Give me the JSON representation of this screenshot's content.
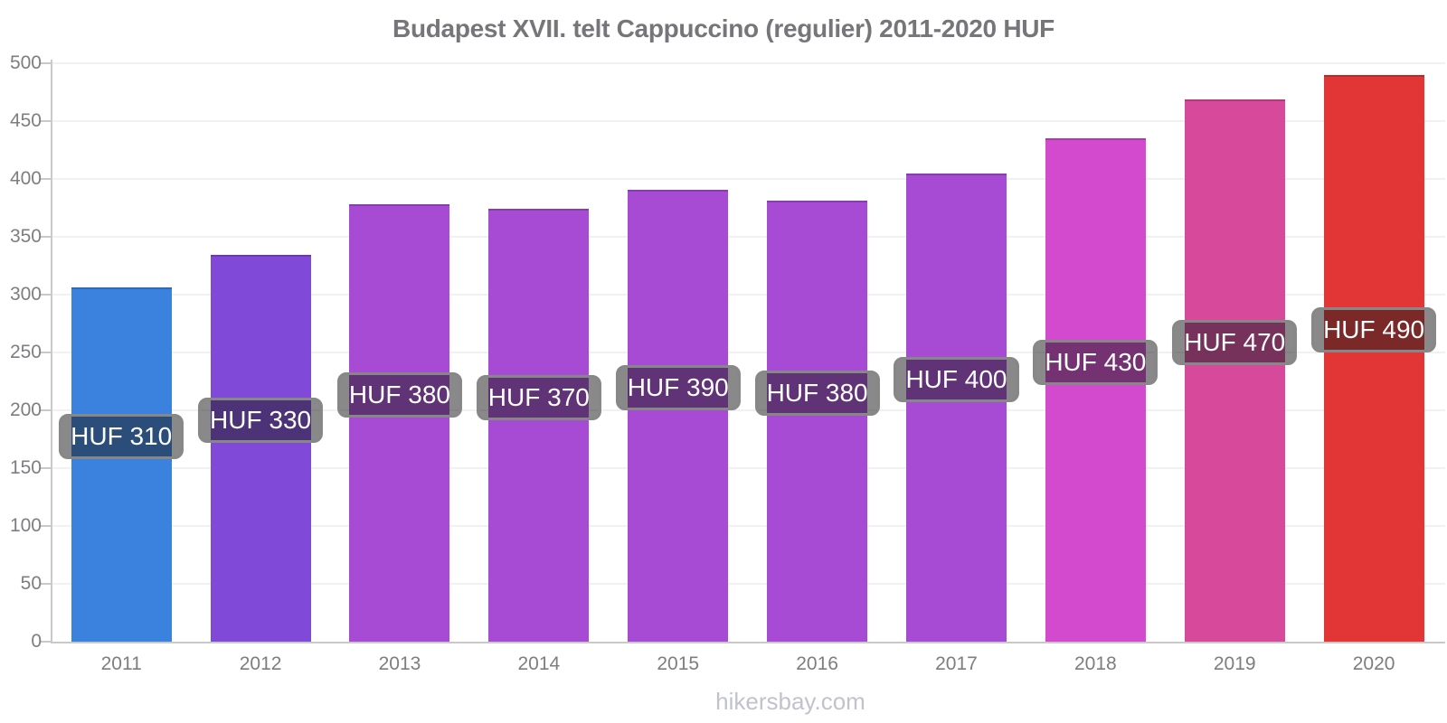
{
  "title": "Budapest XVII. telt Cappuccino (regulier) 2011-2020 HUF",
  "footer": "hikersbay.com",
  "chart_data": {
    "type": "bar",
    "title": "Budapest XVII. telt Cappuccino (regulier) 2011-2020 HUF",
    "categories": [
      "2011",
      "2012",
      "2013",
      "2014",
      "2015",
      "2016",
      "2017",
      "2018",
      "2019",
      "2020"
    ],
    "values": [
      306,
      334,
      378,
      374,
      391,
      381,
      405,
      435,
      469,
      490
    ],
    "bar_labels": [
      "HUF 310",
      "HUF 330",
      "HUF 380",
      "HUF 370",
      "HUF 390",
      "HUF 380",
      "HUF 400",
      "HUF 430",
      "HUF 470",
      "HUF 490"
    ],
    "bar_colors": [
      "#3a82de",
      "#8049d8",
      "#a74bd5",
      "#a74bd5",
      "#a74bd5",
      "#a74bd5",
      "#a74bd5",
      "#d44acf",
      "#d74a9b",
      "#e23535"
    ],
    "xlabel": "",
    "ylabel": "",
    "ylim": [
      0,
      500
    ],
    "yticks": [
      0,
      50,
      100,
      150,
      200,
      250,
      300,
      350,
      400,
      450,
      500
    ],
    "grid": true,
    "legend": false,
    "currency": "HUF"
  },
  "styles": {
    "axis_color": "#c9c9ca",
    "grid_color": "#f1f1f4",
    "tick_text_color": "#7d7d82",
    "title_color": "#75757a",
    "footer_color": "#c2c2cc",
    "label_bg": "rgba(28,28,30,0.52)",
    "label_border": "#878787",
    "label_text": "#ffffff"
  }
}
